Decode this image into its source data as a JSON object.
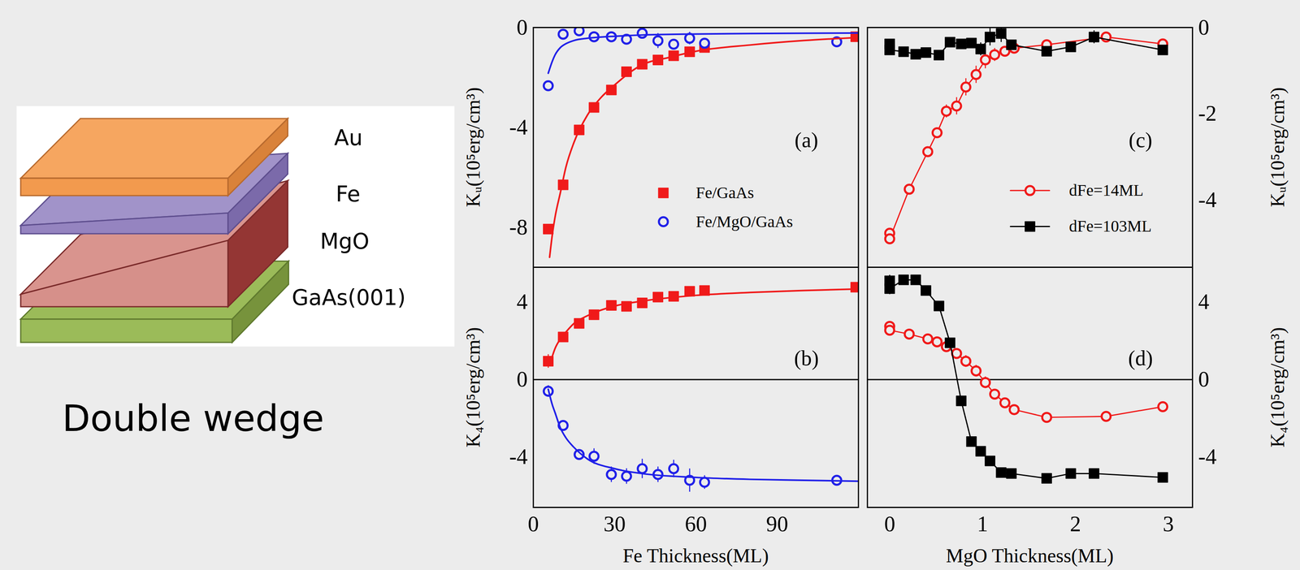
{
  "diagram": {
    "layers": [
      "Au",
      "Fe",
      "MgO",
      "GaAs(001)"
    ],
    "caption": "Double wedge"
  },
  "chart_data": [
    {
      "type": "scatter",
      "panel_label": "(a)",
      "ylabel": "Kᵤ(10⁵erg/cm³)",
      "xlim": [
        0,
        120
      ],
      "ylim": [
        -9.6,
        0
      ],
      "yticks": [
        0,
        -4,
        -8
      ],
      "tick_labels": "y",
      "legend": "bottom",
      "series": [
        {
          "name": "Fe/GaAs",
          "type": "scatter",
          "marker": "square",
          "color": "#f01a1a",
          "x": [
            5.5,
            11,
            16.9,
            22.4,
            28.8,
            34.4,
            40.2,
            46,
            51.8,
            57.7,
            63.2,
            119
          ],
          "values": [
            -8.07,
            -6.3,
            -4.1,
            -3.2,
            -2.5,
            -1.77,
            -1.47,
            -1.3,
            -1.13,
            -0.97,
            -0.8,
            -0.37
          ]
        },
        {
          "name": "Fe/MgO/GaAs",
          "type": "scatter",
          "marker": "circle",
          "color": "#2020e8",
          "x": [
            5.5,
            11,
            16.9,
            22.4,
            28.8,
            34.4,
            40.2,
            46,
            51.8,
            57.7,
            63.2,
            112
          ],
          "values": [
            -2.33,
            -0.27,
            -0.13,
            -0.37,
            -0.37,
            -0.47,
            -0.23,
            -0.53,
            -0.67,
            -0.43,
            -0.63,
            -0.57
          ],
          "error": [
            0,
            0,
            0,
            0.2,
            0,
            0,
            0.15,
            0.3,
            0.2,
            0.25,
            0.2,
            0.15
          ]
        },
        {
          "type": "line",
          "line_style": "solid",
          "color": "#f01a1a",
          "x": [
            6,
            7,
            8,
            10,
            12,
            15,
            20,
            25,
            30,
            40,
            50,
            60,
            80,
            100,
            120
          ],
          "values": [
            -9.2,
            -8.3,
            -7.6,
            -6.6,
            -5.6,
            -4.6,
            -3.5,
            -2.8,
            -2.3,
            -1.5,
            -1.2,
            -0.95,
            -0.7,
            -0.52,
            -0.4
          ]
        },
        {
          "type": "line",
          "line_style": "solid",
          "color": "#2020e8",
          "x": [
            5.5,
            7,
            8,
            10,
            12,
            15,
            20,
            30,
            40,
            60,
            80,
            100,
            120
          ],
          "values": [
            -1.83,
            -1.35,
            -1.1,
            -0.8,
            -0.65,
            -0.52,
            -0.43,
            -0.35,
            -0.3,
            -0.26,
            -0.24,
            -0.23,
            -0.22
          ]
        }
      ]
    },
    {
      "type": "scatter",
      "panel_label": "(b)",
      "xlabel": "Fe Thickness(ML)",
      "ylabel": "K₄(10⁵erg/cm³)",
      "xlim": [
        0,
        120
      ],
      "xticks": [
        0,
        30,
        60,
        90
      ],
      "ylim": [
        -6.6,
        5.8
      ],
      "yticks": [
        4,
        0,
        -4
      ],
      "series": [
        {
          "type": "scatter",
          "marker": "square",
          "color": "#f01a1a",
          "x": [
            5.5,
            11,
            16.9,
            22.4,
            28.8,
            34.4,
            40.2,
            46,
            51.8,
            57.7,
            63.2,
            119
          ],
          "values": [
            0.95,
            2.2,
            2.9,
            3.35,
            3.83,
            3.78,
            3.96,
            4.26,
            4.3,
            4.56,
            4.6,
            4.77
          ],
          "error": [
            0.35,
            0,
            0,
            0,
            0,
            0,
            0,
            0,
            0,
            0,
            0,
            0
          ]
        },
        {
          "type": "scatter",
          "marker": "circle",
          "color": "#2020e8",
          "x": [
            5.5,
            11,
            16.9,
            22.4,
            28.8,
            34.4,
            40.2,
            46,
            51.8,
            57.7,
            63.2,
            112
          ],
          "values": [
            -0.6,
            -2.37,
            -3.87,
            -3.96,
            -4.9,
            -4.99,
            -4.6,
            -4.9,
            -4.6,
            -5.2,
            -5.3,
            -5.2
          ],
          "error": [
            0.3,
            0,
            0.25,
            0.4,
            0.4,
            0.4,
            0.5,
            0.4,
            0.45,
            0.6,
            0.35,
            0.25
          ]
        },
        {
          "type": "line",
          "line_style": "solid",
          "color": "#f01a1a",
          "x": [
            6,
            7,
            8,
            10,
            12,
            15,
            20,
            30,
            40,
            60,
            80,
            100,
            120
          ],
          "values": [
            0.73,
            1.2,
            1.6,
            2.1,
            2.45,
            2.9,
            3.3,
            3.8,
            4.05,
            4.35,
            4.5,
            4.6,
            4.68
          ]
        },
        {
          "type": "line",
          "line_style": "solid",
          "color": "#2020e8",
          "x": [
            5.5,
            7,
            8,
            10,
            12,
            15,
            20,
            30,
            40,
            60,
            80,
            100,
            120
          ],
          "values": [
            -0.5,
            -1.3,
            -1.7,
            -2.5,
            -3.0,
            -3.5,
            -4.1,
            -4.6,
            -4.85,
            -5.05,
            -5.15,
            -5.2,
            -5.25
          ]
        }
      ]
    },
    {
      "type": "line",
      "panel_label": "(c)",
      "y2label": "Kᵤ(10⁵erg/cm³)",
      "xlim": [
        -0.24,
        3.26
      ],
      "y2lim": [
        -5.56,
        0
      ],
      "y2ticks": [
        0,
        -2,
        -4
      ],
      "tick_labels": "y",
      "legend": "right",
      "series": [
        {
          "name": "dFe=14ML",
          "type": "line",
          "marker": "circle",
          "line_style": "solid",
          "color": "#f01a1a",
          "axis": "y2",
          "x": [
            0,
            0,
            0.21,
            0.41,
            0.51,
            0.61,
            0.72,
            0.82,
            0.93,
            1.03,
            1.13,
            1.24,
            1.34,
            1.69,
            2.33,
            2.94
          ],
          "values": [
            -4.77,
            -4.9,
            -3.75,
            -2.88,
            -2.44,
            -1.94,
            -1.82,
            -1.38,
            -1.09,
            -0.75,
            -0.63,
            -0.55,
            -0.48,
            -0.4,
            -0.22,
            -0.38
          ],
          "error": [
            0.05,
            0.05,
            0.1,
            0.1,
            0.1,
            0.15,
            0.2,
            0.2,
            0.2,
            0.2,
            0.15,
            0.1,
            0.1,
            0.1,
            0.05,
            0.1
          ]
        },
        {
          "name": "dFe=103ML",
          "type": "line",
          "marker": "square",
          "line_style": "solid",
          "color": "#000000",
          "axis": "y2",
          "x": [
            0,
            0,
            0.15,
            0.28,
            0.39,
            0.53,
            0.65,
            0.77,
            0.88,
            0.98,
            1.08,
            1.2,
            1.31,
            1.69,
            1.95,
            2.2,
            2.94
          ],
          "values": [
            -0.38,
            -0.52,
            -0.56,
            -0.62,
            -0.58,
            -0.64,
            -0.34,
            -0.38,
            -0.36,
            -0.5,
            -0.22,
            -0.14,
            -0.4,
            -0.55,
            -0.45,
            -0.22,
            -0.52
          ],
          "error": [
            0.1,
            0.1,
            0.05,
            0.05,
            0.05,
            0.05,
            0.1,
            0.1,
            0.1,
            0.15,
            0.2,
            0.2,
            0.1,
            0.1,
            0.1,
            0.15,
            0.1
          ]
        }
      ]
    },
    {
      "type": "line",
      "panel_label": "(d)",
      "xlabel": "MgO Thickness(ML)",
      "y2label": "K₄(10⁵erg/cm³)",
      "xlim": [
        -0.24,
        3.26
      ],
      "xticks": [
        0,
        1,
        2,
        3
      ],
      "y2lim": [
        -6.6,
        5.8
      ],
      "y2ticks": [
        4,
        0,
        -4
      ],
      "series": [
        {
          "type": "line",
          "marker": "circle",
          "line_style": "solid",
          "color": "#f01a1a",
          "axis": "y2",
          "x": [
            0,
            0,
            0.21,
            0.41,
            0.51,
            0.61,
            0.72,
            0.82,
            0.93,
            1.03,
            1.13,
            1.24,
            1.34,
            1.69,
            2.33,
            2.94
          ],
          "values": [
            2.75,
            2.55,
            2.35,
            2.1,
            1.95,
            1.7,
            1.35,
            0.95,
            0.45,
            -0.15,
            -0.75,
            -1.2,
            -1.55,
            -1.95,
            -1.9,
            -1.4
          ],
          "error": [
            0.15,
            0.15,
            0.1,
            0.1,
            0.1,
            0.2,
            0.25,
            0.3,
            0.3,
            0.3,
            0.25,
            0.2,
            0.15,
            0.1,
            0.1,
            0.1
          ]
        },
        {
          "type": "line",
          "marker": "square",
          "line_style": "solid",
          "color": "#000000",
          "axis": "y2",
          "x": [
            0,
            0,
            0.15,
            0.28,
            0.39,
            0.53,
            0.65,
            0.77,
            0.88,
            0.98,
            1.08,
            1.2,
            1.31,
            1.69,
            1.95,
            2.2,
            2.94
          ],
          "values": [
            5.1,
            4.7,
            5.15,
            5.15,
            4.6,
            3.8,
            1.9,
            -1.1,
            -3.2,
            -3.7,
            -4.2,
            -4.8,
            -4.85,
            -5.1,
            -4.85,
            -4.85,
            -5.05
          ],
          "error": [
            0.3,
            0.3,
            0.1,
            0.1,
            0.1,
            0.1,
            0.1,
            0.1,
            0.1,
            0.1,
            0.1,
            0.2,
            0.15,
            0.15,
            0.15,
            0.2,
            0.1
          ]
        }
      ]
    }
  ]
}
